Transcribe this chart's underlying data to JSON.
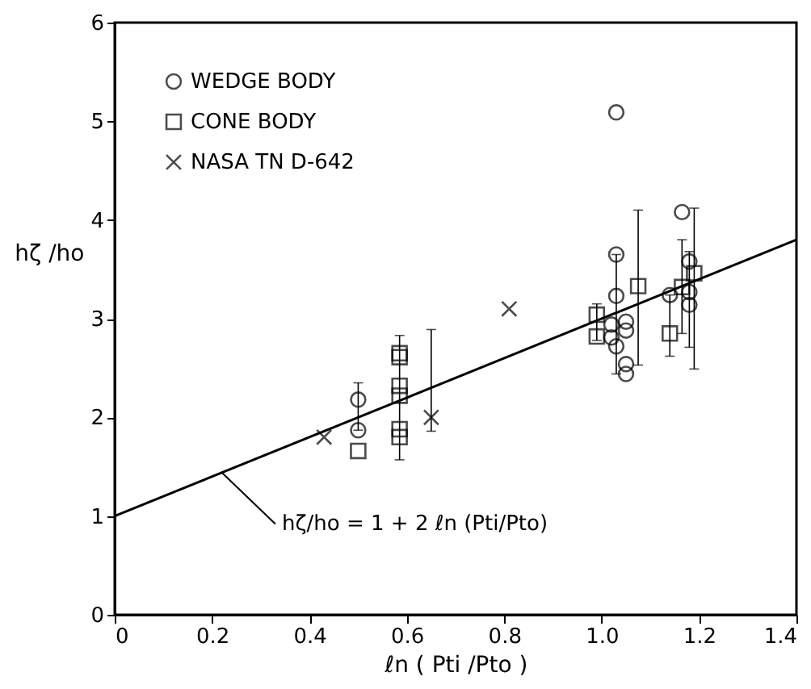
{
  "chart_data": {
    "type": "scatter",
    "xlabel": "ℓn ( Pti /Pto )",
    "ylabel": "hζ /ho",
    "xlim": [
      0,
      1.4
    ],
    "xticks": [
      0,
      0.2,
      0.4,
      0.6,
      0.8,
      {
        "value": 1.0,
        "label": "1.0"
      },
      1.2,
      1.4
    ],
    "ylim": [
      0,
      6
    ],
    "yticks": [
      0,
      1,
      2,
      3,
      4,
      5,
      6
    ],
    "grid": false,
    "legend": "top left",
    "series": [
      {
        "name": "WEDGE BODY",
        "color": "#000000",
        "marker": "circle",
        "x": [
          0.5,
          0.5,
          1.03,
          1.03,
          1.03,
          1.02,
          1.02,
          1.03,
          1.05,
          1.05,
          1.05,
          1.05,
          1.165,
          1.14,
          1.18,
          1.18,
          1.18
        ],
        "values": [
          2.18,
          1.87,
          5.09,
          3.65,
          3.23,
          2.94,
          2.81,
          2.72,
          2.97,
          2.88,
          2.54,
          2.44,
          4.08,
          3.24,
          3.58,
          3.27,
          3.14
        ],
        "errors": [
          [
            1.87,
            2.35
          ],
          null,
          null,
          [
            2.44,
            3.65
          ],
          null,
          null,
          null,
          null,
          null,
          null,
          null,
          null,
          null,
          null,
          [
            2.71,
            3.68
          ],
          null,
          null
        ]
      },
      {
        "name": "CONE BODY",
        "color": "#000000",
        "marker": "square",
        "x": [
          0.5,
          0.585,
          0.585,
          0.585,
          0.585,
          0.585,
          0.585,
          0.99,
          0.99,
          1.075,
          1.14,
          1.165,
          1.19
        ],
        "values": [
          1.66,
          2.65,
          2.61,
          2.32,
          2.22,
          1.88,
          1.8,
          3.04,
          2.82,
          3.33,
          2.85,
          3.32,
          3.46
        ],
        "errors": [
          null,
          [
            1.57,
            2.83
          ],
          null,
          null,
          null,
          null,
          null,
          [
            2.78,
            3.15
          ],
          null,
          [
            2.53,
            4.1
          ],
          [
            2.62,
            3.24
          ],
          [
            2.85,
            3.8
          ],
          [
            2.49,
            4.12
          ]
        ]
      },
      {
        "name": "NASA TN D-642",
        "color": "#000000",
        "marker": "cross",
        "x": [
          0.43,
          0.65,
          0.81
        ],
        "values": [
          1.8,
          2.0,
          3.1
        ],
        "errors": [
          null,
          [
            1.86,
            2.89
          ],
          null
        ]
      },
      {
        "type": "line",
        "color": "#000000",
        "line_style": "solid",
        "marker": "none",
        "x": [
          0,
          1.4
        ],
        "values": [
          1.0,
          3.8
        ]
      }
    ],
    "annotations": [
      {
        "text": "hζ/ho = 1 + 2 ℓn (Pti/Pto)",
        "x": 0.22,
        "y": 1.44
      }
    ]
  }
}
